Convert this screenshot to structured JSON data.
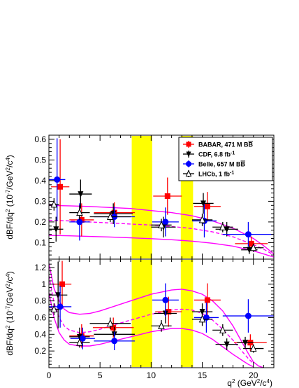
{
  "chart_data": [
    {
      "type": "scatter",
      "panel": "top",
      "ylabel_parts": {
        "main": "dBF/dq",
        "sup1": "2",
        "unit": " (10",
        "sup2": "-7",
        "unit2": "/GeV",
        "sup3": "2",
        "unit3": "/c",
        "sup4": "4",
        "unit4": ")"
      },
      "xlim": [
        0,
        22
      ],
      "ylim": [
        0.02,
        0.62
      ],
      "y_ticks": [
        0.1,
        0.2,
        0.3,
        0.4,
        0.5,
        0.6
      ],
      "y_tick_labels": [
        "0.1",
        "0.2",
        "0.3",
        "0.4",
        "0.5",
        "0.6"
      ],
      "vetoes": [
        [
          8.1,
          10.1
        ],
        [
          12.9,
          14.1
        ]
      ],
      "veto_color": "#ffff00",
      "legend": {
        "placement": "top-right",
        "entries": [
          {
            "label": "BABAR, 471 M B",
            "label_bar": "B",
            "series": "BABAR"
          },
          {
            "label": "CDF, 6.8 fb",
            "sup": "-1",
            "series": "CDF"
          },
          {
            "label": "Belle, 657 M B",
            "label_bar": "B",
            "series": "Belle"
          },
          {
            "label": "LHCb, 1 fb",
            "sup": "-1",
            "series": "LHCb"
          }
        ]
      },
      "series": [
        {
          "name": "BABAR",
          "marker": "square",
          "color": "#ff0000",
          "points": [
            {
              "x": 1.1,
              "y": 0.37,
              "xerr": 0.9,
              "yerr": 0.23
            },
            {
              "x": 3.2,
              "y": 0.21,
              "xerr": 1.2,
              "yerr": 0.08
            },
            {
              "x": 6.4,
              "y": 0.245,
              "xerr": 2.0,
              "yerr": 0.05
            },
            {
              "x": 11.6,
              "y": 0.325,
              "xerr": 1.4,
              "yerr": 0.09
            },
            {
              "x": 15.5,
              "y": 0.275,
              "xerr": 1.3,
              "yerr": 0.07
            },
            {
              "x": 19.8,
              "y": 0.095,
              "xerr": 1.6,
              "yerr": 0.035
            }
          ]
        },
        {
          "name": "CDF",
          "marker": "triangle-down",
          "color": "#000000",
          "points": [
            {
              "x": 0.7,
              "y": 0.165,
              "xerr": 0.7,
              "yerr": 0.06
            },
            {
              "x": 3.1,
              "y": 0.335,
              "xerr": 1.1,
              "yerr": 0.07
            },
            {
              "x": 6.3,
              "y": 0.24,
              "xerr": 1.9,
              "yerr": 0.05
            },
            {
              "x": 11.2,
              "y": 0.175,
              "xerr": 1.2,
              "yerr": 0.05
            },
            {
              "x": 15.1,
              "y": 0.29,
              "xerr": 1.0,
              "yerr": 0.05
            },
            {
              "x": 17.4,
              "y": 0.165,
              "xerr": 1.1,
              "yerr": 0.035
            },
            {
              "x": 19.6,
              "y": 0.065,
              "xerr": 0.8,
              "yerr": 0.02
            }
          ]
        },
        {
          "name": "Belle",
          "marker": "circle",
          "color": "#0000ff",
          "points": [
            {
              "x": 0.8,
              "y": 0.405,
              "xerr": 0.8,
              "yerr": 0.2
            },
            {
              "x": 3.0,
              "y": 0.2,
              "xerr": 1.0,
              "yerr": 0.09
            },
            {
              "x": 6.4,
              "y": 0.225,
              "xerr": 2.0,
              "yerr": 0.05
            },
            {
              "x": 11.4,
              "y": 0.2,
              "xerr": 1.3,
              "yerr": 0.07
            },
            {
              "x": 15.2,
              "y": 0.205,
              "xerr": 1.2,
              "yerr": 0.08
            },
            {
              "x": 19.5,
              "y": 0.14,
              "xerr": 2.5,
              "yerr": 0.06
            }
          ]
        },
        {
          "name": "LHCb",
          "marker": "triangle-up-open",
          "color": "#000000",
          "points": [
            {
              "x": 0.5,
              "y": 0.285,
              "xerr": 0.5,
              "yerr": 0.03
            },
            {
              "x": 3.0,
              "y": 0.245,
              "xerr": 1.0,
              "yerr": 0.035
            },
            {
              "x": 6.0,
              "y": 0.225,
              "xerr": 2.0,
              "yerr": 0.025
            },
            {
              "x": 11.0,
              "y": 0.185,
              "xerr": 1.0,
              "yerr": 0.03
            },
            {
              "x": 15.0,
              "y": 0.21,
              "xerr": 1.0,
              "yerr": 0.03
            },
            {
              "x": 17.0,
              "y": 0.175,
              "xerr": 1.0,
              "yerr": 0.025
            },
            {
              "x": 20.0,
              "y": 0.075,
              "xerr": 1.0,
              "yerr": 0.02
            }
          ]
        }
      ],
      "curves": {
        "color": "#ff00ff",
        "upper": {
          "x": [
            0,
            2,
            4,
            6,
            8,
            10,
            12,
            14,
            16,
            18,
            20,
            21,
            22
          ],
          "y": [
            0.28,
            0.278,
            0.275,
            0.27,
            0.265,
            0.255,
            0.245,
            0.23,
            0.205,
            0.17,
            0.12,
            0.085,
            0.045
          ]
        },
        "central": {
          "x": [
            0,
            2,
            4,
            6,
            8,
            10,
            12,
            14,
            16,
            18,
            20,
            21,
            22
          ],
          "y": [
            0.208,
            0.205,
            0.2,
            0.195,
            0.19,
            0.185,
            0.178,
            0.168,
            0.152,
            0.128,
            0.09,
            0.068,
            0.04
          ]
        },
        "lower": {
          "x": [
            0,
            2,
            4,
            6,
            8,
            10,
            12,
            14,
            16,
            18,
            20,
            21,
            22
          ],
          "y": [
            0.135,
            0.133,
            0.13,
            0.127,
            0.123,
            0.119,
            0.114,
            0.107,
            0.097,
            0.083,
            0.06,
            0.045,
            0.03
          ]
        }
      }
    },
    {
      "type": "scatter",
      "panel": "bottom",
      "xlabel_parts": {
        "main": "q",
        "sup1": "2",
        "unit": " (GeV",
        "sup2": "2",
        "unit2": "/c",
        "sup3": "4",
        "unit3": ")"
      },
      "ylabel_parts": {
        "main": "dBF/dq",
        "sup1": "2",
        "unit": " (10",
        "sup2": "-7",
        "unit2": "/GeV",
        "sup3": "2",
        "unit3": "/c",
        "sup4": "4",
        "unit4": ")"
      },
      "xlim": [
        0,
        22
      ],
      "ylim": [
        0.0,
        1.3
      ],
      "x_ticks": [
        0,
        5,
        10,
        15,
        20
      ],
      "x_tick_labels": [
        "0",
        "5",
        "10",
        "15",
        "20"
      ],
      "y_ticks": [
        0.2,
        0.4,
        0.6,
        0.8,
        1.0,
        1.2
      ],
      "y_tick_labels": [
        "0.2",
        "0.4",
        "0.6",
        "0.8",
        "1",
        "1.2"
      ],
      "vetoes": [
        [
          8.1,
          10.1
        ],
        [
          12.9,
          14.1
        ]
      ],
      "veto_color": "#ffff00",
      "series": [
        {
          "name": "BABAR",
          "marker": "square",
          "color": "#ff0000",
          "points": [
            {
              "x": 1.3,
              "y": 1.0,
              "xerr": 0.9,
              "yerr": 0.28
            },
            {
              "x": 3.2,
              "y": 0.38,
              "xerr": 1.2,
              "yerr": 0.14
            },
            {
              "x": 6.3,
              "y": 0.48,
              "xerr": 2.0,
              "yerr": 0.12
            },
            {
              "x": 11.7,
              "y": 0.67,
              "xerr": 1.3,
              "yerr": 0.18
            },
            {
              "x": 15.5,
              "y": 0.81,
              "xerr": 1.3,
              "yerr": 0.2
            },
            {
              "x": 19.7,
              "y": 0.3,
              "xerr": 1.6,
              "yerr": 0.1
            }
          ]
        },
        {
          "name": "CDF",
          "marker": "triangle-down",
          "color": "#000000",
          "points": [
            {
              "x": 0.9,
              "y": 0.87,
              "xerr": 0.9,
              "yerr": 0.4
            },
            {
              "x": 3.0,
              "y": 0.37,
              "xerr": 1.0,
              "yerr": 0.11
            },
            {
              "x": 6.4,
              "y": 0.4,
              "xerr": 2.0,
              "yerr": 0.09
            },
            {
              "x": 11.4,
              "y": 0.65,
              "xerr": 1.1,
              "yerr": 0.12
            },
            {
              "x": 15.0,
              "y": 0.67,
              "xerr": 1.0,
              "yerr": 0.1
            },
            {
              "x": 17.4,
              "y": 0.28,
              "xerr": 1.1,
              "yerr": 0.07
            },
            {
              "x": 19.2,
              "y": 0.3,
              "xerr": 0.8,
              "yerr": 0.07
            }
          ]
        },
        {
          "name": "Belle",
          "marker": "circle",
          "color": "#0000ff",
          "points": [
            {
              "x": 1.1,
              "y": 0.73,
              "xerr": 1.1,
              "yerr": 0.25
            },
            {
              "x": 3.3,
              "y": 0.35,
              "xerr": 1.2,
              "yerr": 0.13
            },
            {
              "x": 6.4,
              "y": 0.32,
              "xerr": 2.0,
              "yerr": 0.11
            },
            {
              "x": 11.4,
              "y": 0.81,
              "xerr": 1.3,
              "yerr": 0.2
            },
            {
              "x": 15.4,
              "y": 0.6,
              "xerr": 1.2,
              "yerr": 0.18
            },
            {
              "x": 19.5,
              "y": 0.62,
              "xerr": 2.5,
              "yerr": 0.2
            }
          ]
        },
        {
          "name": "LHCb",
          "marker": "triangle-up-open",
          "color": "#000000",
          "points": [
            {
              "x": 0.5,
              "y": 0.7,
              "xerr": 0.5,
              "yerr": 0.07
            },
            {
              "x": 3.0,
              "y": 0.3,
              "xerr": 1.0,
              "yerr": 0.06
            },
            {
              "x": 6.0,
              "y": 0.53,
              "xerr": 2.0,
              "yerr": 0.07
            },
            {
              "x": 11.0,
              "y": 0.5,
              "xerr": 1.0,
              "yerr": 0.07
            },
            {
              "x": 15.0,
              "y": 0.58,
              "xerr": 1.0,
              "yerr": 0.08
            },
            {
              "x": 17.0,
              "y": 0.45,
              "xerr": 1.0,
              "yerr": 0.07
            },
            {
              "x": 20.0,
              "y": 0.23,
              "xerr": 1.0,
              "yerr": 0.05
            }
          ]
        }
      ],
      "curves": {
        "color": "#ff00ff",
        "upper": {
          "x": [
            0,
            0.5,
            1,
            1.5,
            2,
            3,
            4,
            5,
            6,
            8,
            10,
            12,
            13,
            14,
            15,
            16,
            17,
            18,
            19,
            19.5,
            20,
            20.5,
            21
          ],
          "y": [
            1.25,
            0.95,
            0.8,
            0.7,
            0.66,
            0.64,
            0.65,
            0.68,
            0.72,
            0.8,
            0.88,
            0.93,
            0.94,
            0.92,
            0.88,
            0.8,
            0.68,
            0.5,
            0.28,
            0.17,
            0.07,
            0.02,
            0.0
          ]
        },
        "central": {
          "x": [
            0,
            0.5,
            1,
            1.5,
            2,
            3,
            4,
            5,
            6,
            8,
            10,
            12,
            13,
            14,
            15,
            16,
            17,
            18,
            19,
            19.5,
            20
          ],
          "y": [
            1.1,
            0.78,
            0.6,
            0.5,
            0.45,
            0.42,
            0.43,
            0.46,
            0.5,
            0.57,
            0.64,
            0.69,
            0.7,
            0.69,
            0.65,
            0.57,
            0.46,
            0.33,
            0.18,
            0.11,
            0.05
          ]
        },
        "lower": {
          "x": [
            0,
            0.5,
            1,
            1.5,
            2,
            3,
            4,
            5,
            6,
            8,
            10,
            12,
            13,
            14,
            15,
            16,
            17,
            18,
            19,
            19.5,
            20
          ],
          "y": [
            0.9,
            0.6,
            0.42,
            0.33,
            0.28,
            0.26,
            0.26,
            0.28,
            0.31,
            0.37,
            0.43,
            0.47,
            0.47,
            0.45,
            0.41,
            0.34,
            0.25,
            0.16,
            0.08,
            0.04,
            0.01
          ]
        }
      }
    }
  ]
}
